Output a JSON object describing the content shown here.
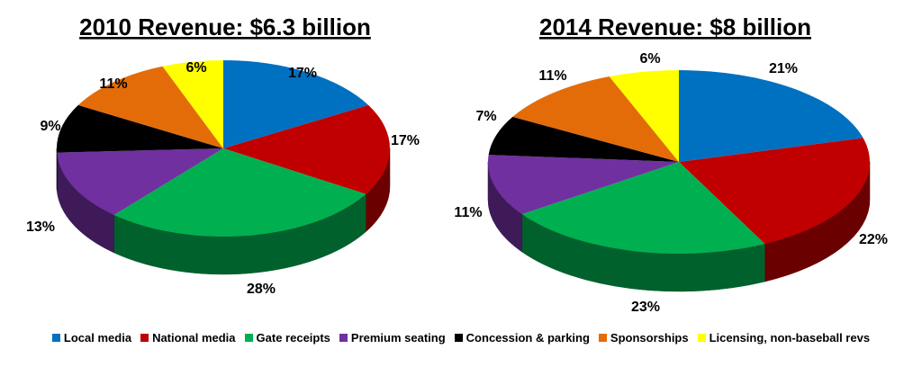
{
  "chart_data": [
    {
      "type": "pie",
      "title": "2010 Revenue: $6.3 billion",
      "categories": [
        "Local media",
        "National media",
        "Gate receipts",
        "Premium seating",
        "Concession & parking",
        "Sponsorships",
        "Licensing, non-baseball revs"
      ],
      "values": [
        17,
        17,
        28,
        13,
        9,
        11,
        6
      ],
      "value_labels": [
        "17%",
        "17%",
        "28%",
        "13%",
        "9%",
        "11%",
        "6%"
      ]
    },
    {
      "type": "pie",
      "title": "2014 Revenue: $8 billion",
      "categories": [
        "Local media",
        "National media",
        "Gate receipts",
        "Premium seating",
        "Concession & parking",
        "Sponsorships",
        "Licensing, non-baseball revs"
      ],
      "values": [
        21,
        22,
        23,
        11,
        7,
        11,
        6
      ],
      "value_labels": [
        "21%",
        "22%",
        "23%",
        "11%",
        "7%",
        "11%",
        "6%"
      ]
    }
  ],
  "legend": {
    "placement": "bottom",
    "items": [
      {
        "label": "Local media",
        "color": "#0070c0"
      },
      {
        "label": "National media",
        "color": "#c00000"
      },
      {
        "label": "Gate receipts",
        "color": "#00b050"
      },
      {
        "label": "Premium seating",
        "color": "#7030a0"
      },
      {
        "label": "Concession & parking",
        "color": "#000000"
      },
      {
        "label": "Sponsorships",
        "color": "#e36c09"
      },
      {
        "label": "Licensing, non-baseball revs",
        "color": "#ffff00"
      }
    ]
  }
}
